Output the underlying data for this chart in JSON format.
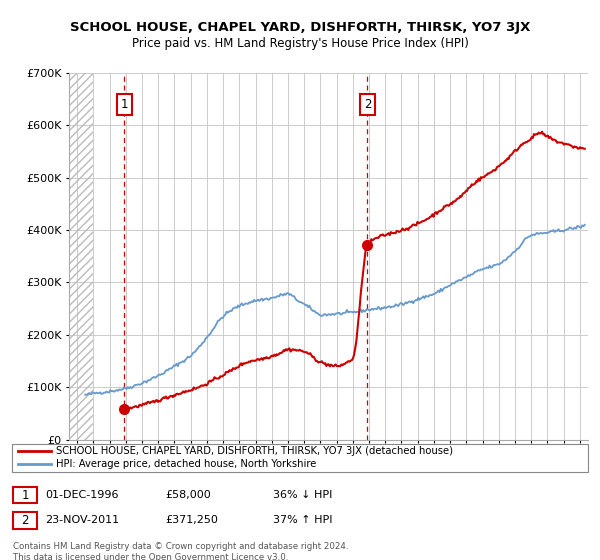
{
  "title": "SCHOOL HOUSE, CHAPEL YARD, DISHFORTH, THIRSK, YO7 3JX",
  "subtitle": "Price paid vs. HM Land Registry's House Price Index (HPI)",
  "legend_line1": "SCHOOL HOUSE, CHAPEL YARD, DISHFORTH, THIRSK, YO7 3JX (detached house)",
  "legend_line2": "HPI: Average price, detached house, North Yorkshire",
  "table_rows": [
    {
      "num": "1",
      "date": "01-DEC-1996",
      "price": "£58,000",
      "hpi": "36% ↓ HPI"
    },
    {
      "num": "2",
      "date": "23-NOV-2011",
      "price": "£371,250",
      "hpi": "37% ↑ HPI"
    }
  ],
  "footnote": "Contains HM Land Registry data © Crown copyright and database right 2024.\nThis data is licensed under the Open Government Licence v3.0.",
  "sale1_year": 1996.92,
  "sale1_price": 58000,
  "sale2_year": 2011.9,
  "sale2_price": 371250,
  "red_color": "#cc0000",
  "blue_color": "#6699cc",
  "grid_color": "#cccccc",
  "ylim": [
    0,
    700000
  ],
  "xlim_start": 1993.5,
  "xlim_end": 2025.5,
  "hatch_end": 1995.0,
  "hpi_years": [
    1994.5,
    1995.0,
    1996.0,
    1997.0,
    1998.0,
    1999.0,
    2000.0,
    2001.0,
    2002.0,
    2003.0,
    2004.0,
    2005.0,
    2006.0,
    2007.0,
    2007.5,
    2008.5,
    2009.0,
    2010.0,
    2011.0,
    2012.0,
    2013.0,
    2014.0,
    2015.0,
    2016.0,
    2017.0,
    2018.0,
    2019.0,
    2020.0,
    2021.0,
    2022.0,
    2023.0,
    2024.0,
    2025.3
  ],
  "hpi_prices": [
    85000,
    88000,
    92000,
    98000,
    108000,
    122000,
    140000,
    160000,
    195000,
    235000,
    255000,
    265000,
    270000,
    278000,
    268000,
    248000,
    238000,
    240000,
    243000,
    248000,
    252000,
    258000,
    268000,
    278000,
    295000,
    310000,
    325000,
    335000,
    360000,
    390000,
    395000,
    400000,
    408000
  ],
  "red_years": [
    1996.92,
    1997.5,
    1998.5,
    1999.5,
    2000.5,
    2001.5,
    2002.5,
    2003.5,
    2004.5,
    2005.5,
    2006.5,
    2007.0,
    2008.0,
    2009.0,
    2010.0,
    2010.5,
    2011.0,
    2011.9,
    2012.5,
    2013.5,
    2014.5,
    2015.5,
    2016.5,
    2017.5,
    2018.5,
    2019.5,
    2020.5,
    2021.5,
    2022.0,
    2022.5,
    2023.0,
    2023.5,
    2024.0,
    2024.5,
    2025.3
  ],
  "red_prices": [
    58000,
    62000,
    70000,
    80000,
    90000,
    100000,
    115000,
    132000,
    148000,
    155000,
    165000,
    172000,
    168000,
    148000,
    140000,
    145000,
    155000,
    371250,
    385000,
    395000,
    405000,
    420000,
    440000,
    460000,
    490000,
    510000,
    535000,
    565000,
    575000,
    585000,
    578000,
    570000,
    565000,
    560000,
    555000
  ]
}
